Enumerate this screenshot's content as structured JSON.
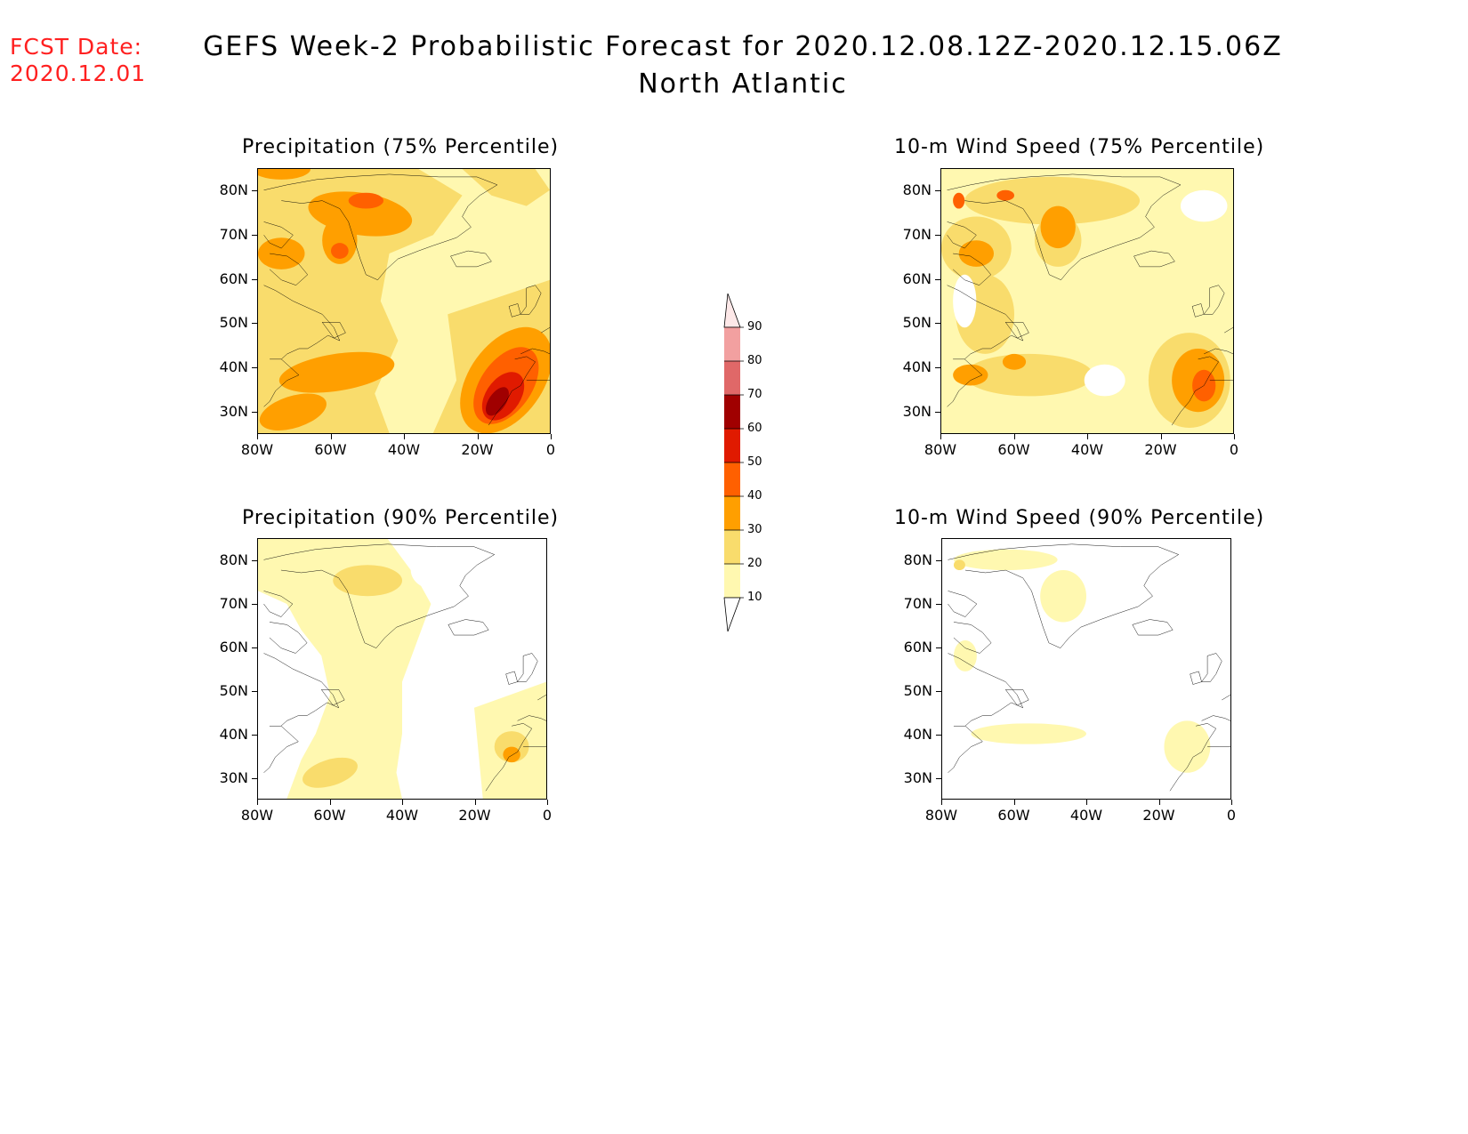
{
  "forecast_date_label": "FCST Date:",
  "forecast_date_value": "2020.12.01",
  "title_line1": "GEFS Week-2 Probabilistic Forecast for 2020.12.08.12Z-2020.12.15.06Z",
  "title_line2": "North Atlantic",
  "panels": [
    {
      "title": "Precipitation (75% Percentile)"
    },
    {
      "title": "10-m Wind Speed (75% Percentile)"
    },
    {
      "title": "Precipitation (90% Percentile)"
    },
    {
      "title": "10-m Wind Speed (90% Percentile)"
    }
  ],
  "lat_labels": [
    "80N",
    "70N",
    "60N",
    "50N",
    "40N",
    "30N"
  ],
  "lon_labels": [
    "80W",
    "60W",
    "40W",
    "20W",
    "0"
  ],
  "colorbar": {
    "labels": [
      "90",
      "80",
      "70",
      "60",
      "50",
      "40",
      "30",
      "20",
      "10"
    ],
    "colors": [
      "#f2a0a0",
      "#e06868",
      "#a00000",
      "#e01a00",
      "#ff6000",
      "#ff9f00",
      "#f9dc6c",
      "#fff8b0"
    ]
  },
  "colors": {
    "fcst_text": "#ff2020",
    "lvl10": "#fff8b0",
    "lvl20": "#f9dc6c",
    "lvl30": "#ff9f00",
    "lvl40": "#ff6000",
    "lvl50": "#e01a00",
    "lvl60": "#a00000"
  }
}
